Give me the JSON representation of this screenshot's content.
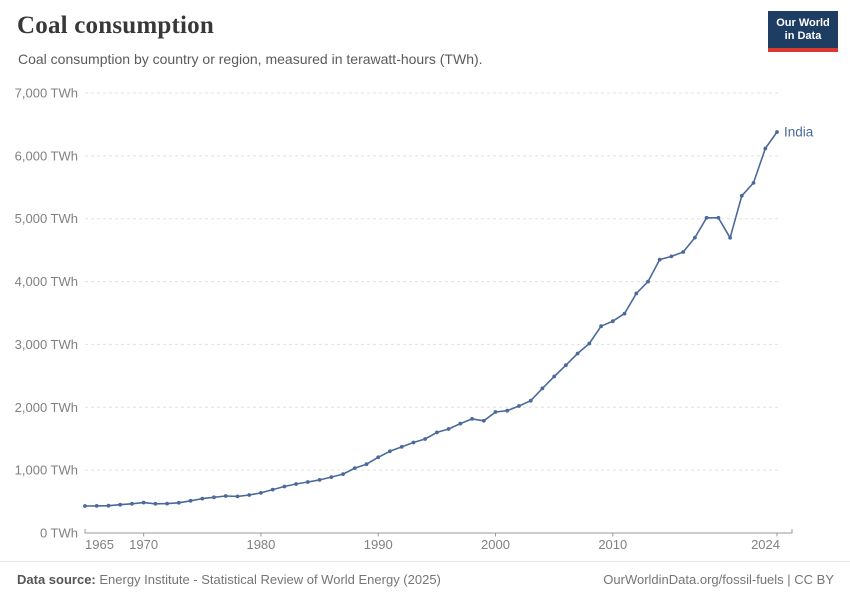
{
  "header": {
    "title": "Coal consumption",
    "subtitle": "Coal consumption by country or region, measured in terawatt-hours (TWh)."
  },
  "logo": {
    "line1": "Our World",
    "line2": "in Data"
  },
  "footer": {
    "source_label": "Data source:",
    "source_text": " Energy Institute - Statistical Review of World Energy (2025)",
    "rights": "OurWorldinData.org/fossil-fuels | CC BY"
  },
  "colors": {
    "series_line": "#4B6A9B",
    "grid": "#e0e0e0",
    "axis": "#999999",
    "tick_text": "#818181",
    "logo_bg": "#1d3d63",
    "logo_red": "#dc3a31"
  },
  "chart_data": {
    "type": "line",
    "title": "Coal consumption",
    "xlabel": "",
    "ylabel": "TWh",
    "xlim": [
      1965,
      2024
    ],
    "ylim": [
      0,
      7000
    ],
    "grid": "horizontal-dashed",
    "legend_position": "end-of-line label",
    "x_ticks": [
      1965,
      1970,
      1980,
      1990,
      2000,
      2010,
      2024
    ],
    "y_ticks": [
      {
        "value": 0,
        "label": "0 TWh"
      },
      {
        "value": 1000,
        "label": "1,000 TWh"
      },
      {
        "value": 2000,
        "label": "2,000 TWh"
      },
      {
        "value": 3000,
        "label": "3,000 TWh"
      },
      {
        "value": 4000,
        "label": "4,000 TWh"
      },
      {
        "value": 5000,
        "label": "5,000 TWh"
      },
      {
        "value": 6000,
        "label": "6,000 TWh"
      },
      {
        "value": 7000,
        "label": "7,000 TWh"
      }
    ],
    "series": [
      {
        "name": "India",
        "color": "#4B6A9B",
        "x": [
          1965,
          1966,
          1967,
          1968,
          1969,
          1970,
          1971,
          1972,
          1973,
          1974,
          1975,
          1976,
          1977,
          1978,
          1979,
          1980,
          1981,
          1982,
          1983,
          1984,
          1985,
          1986,
          1987,
          1988,
          1989,
          1990,
          1991,
          1992,
          1993,
          1994,
          1995,
          1996,
          1997,
          1998,
          1999,
          2000,
          2001,
          2002,
          2003,
          2004,
          2005,
          2006,
          2007,
          2008,
          2009,
          2010,
          2011,
          2012,
          2013,
          2014,
          2015,
          2016,
          2017,
          2018,
          2019,
          2020,
          2021,
          2022,
          2023,
          2024
        ],
        "values": [
          429,
          431,
          434,
          450,
          464,
          483,
          465,
          468,
          480,
          512,
          548,
          568,
          588,
          583,
          605,
          638,
          690,
          740,
          779,
          812,
          845,
          890,
          937,
          1032,
          1095,
          1205,
          1300,
          1370,
          1440,
          1495,
          1600,
          1655,
          1740,
          1815,
          1785,
          1925,
          1945,
          2020,
          2105,
          2300,
          2490,
          2670,
          2855,
          3015,
          3290,
          3370,
          3490,
          3810,
          4000,
          4350,
          4400,
          4470,
          4700,
          5015,
          5015,
          4697,
          5364,
          5570,
          6117,
          6380
        ]
      }
    ]
  }
}
